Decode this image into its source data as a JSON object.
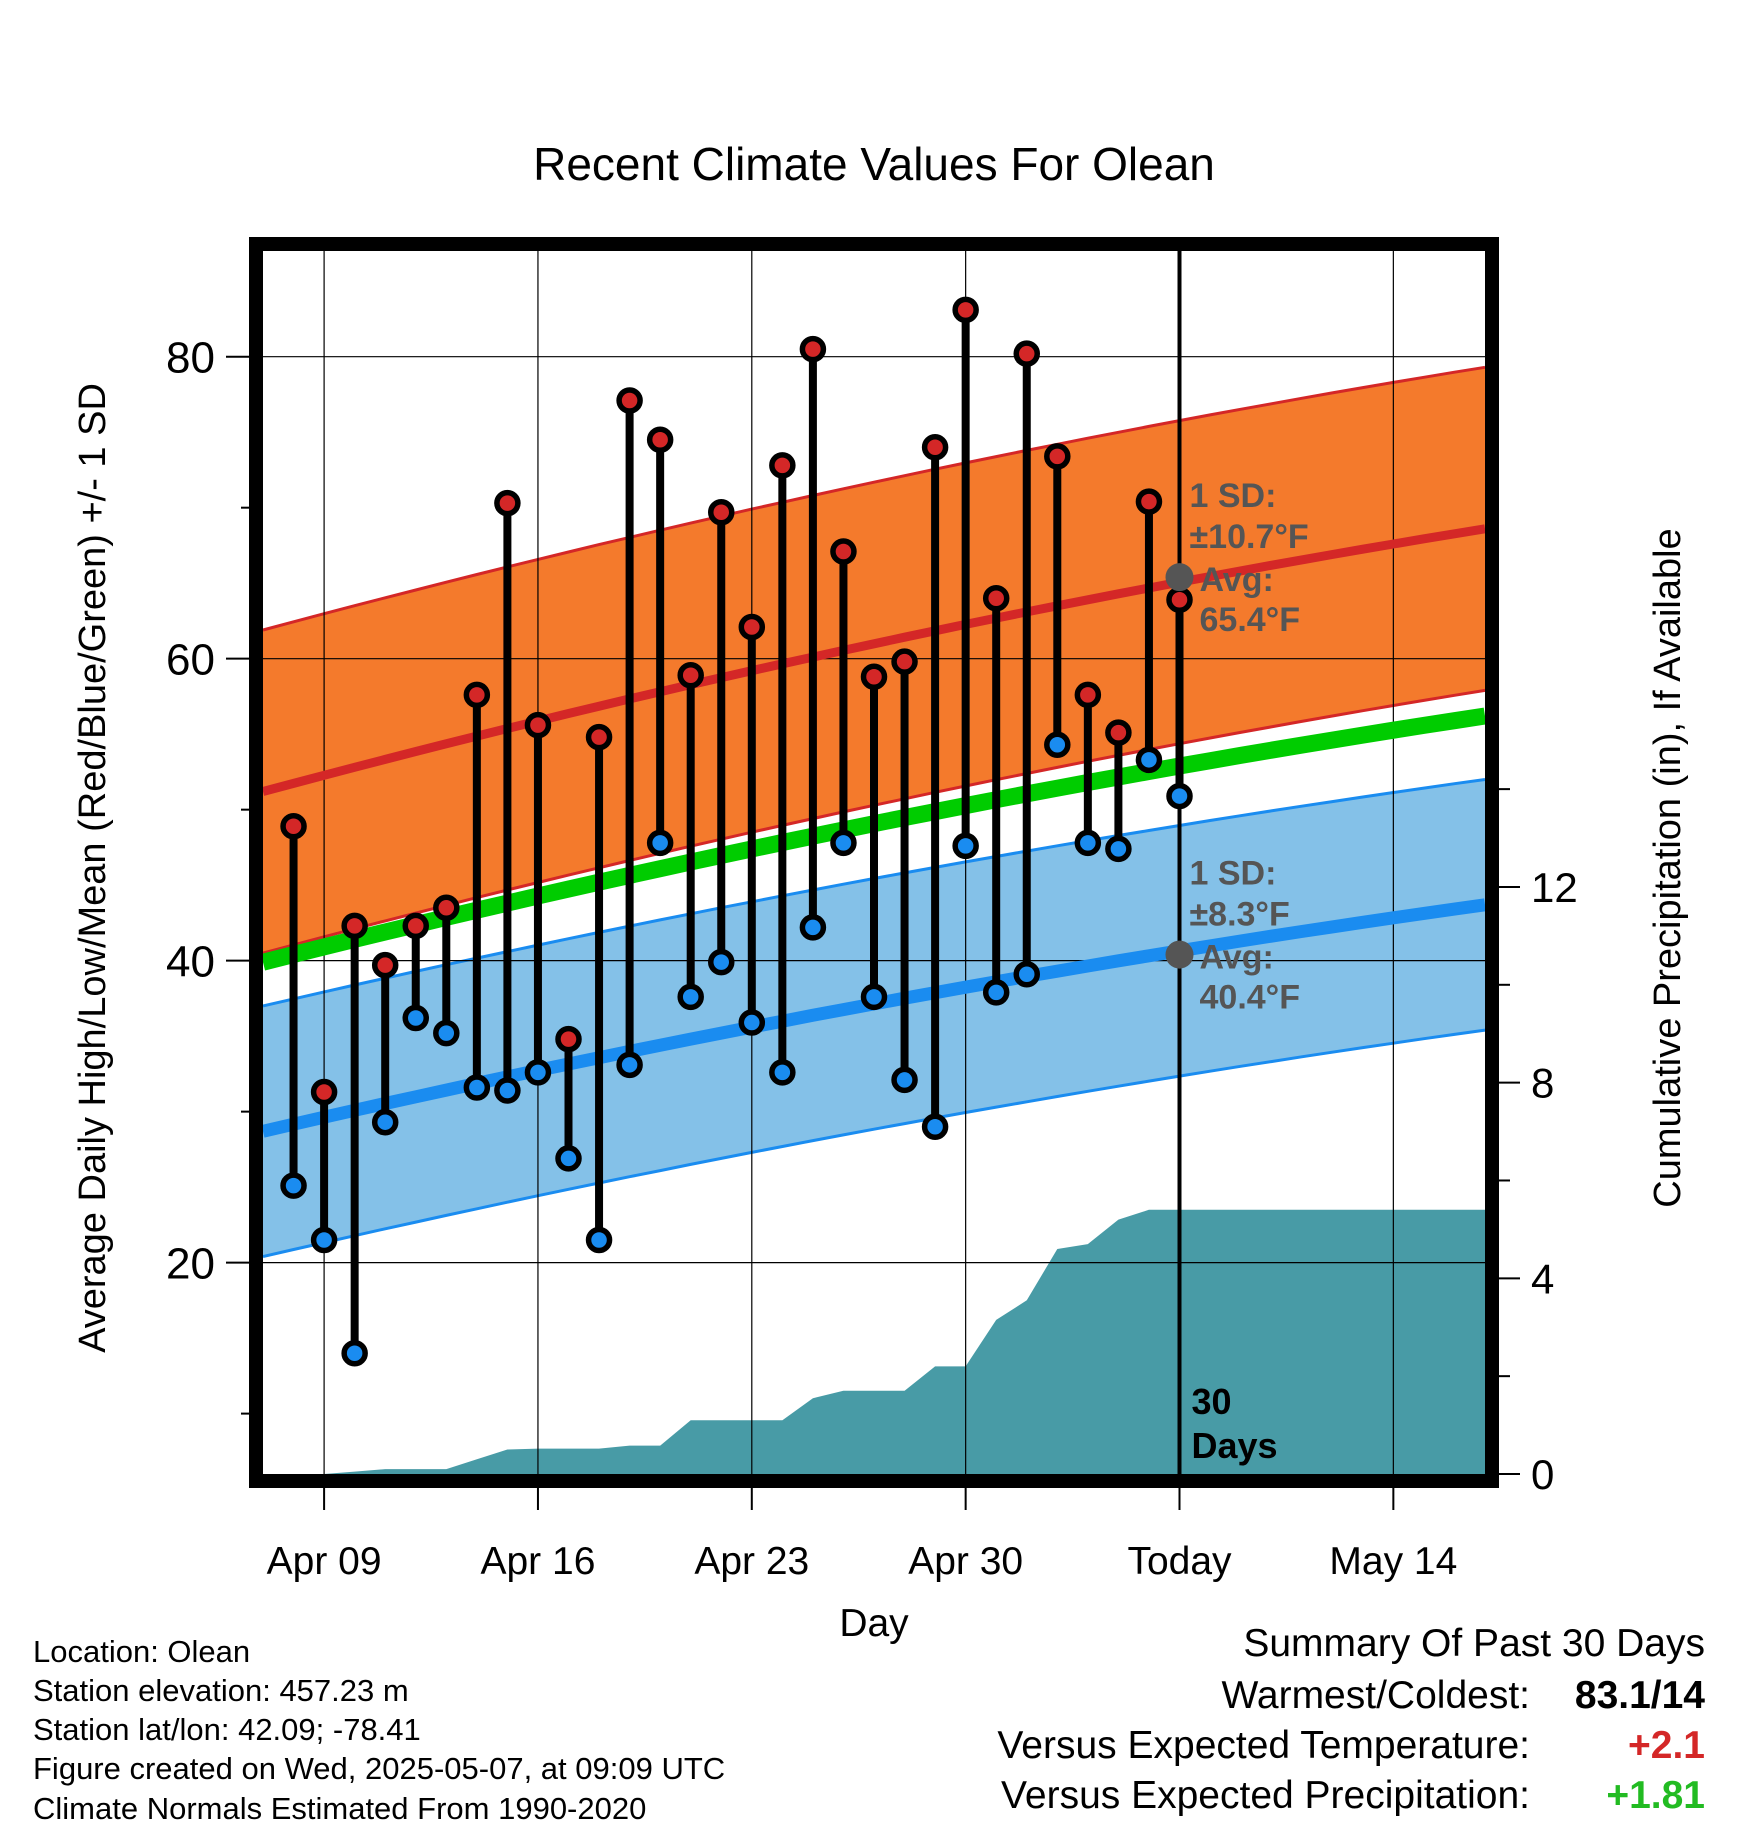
{
  "chart_data": {
    "type": "line",
    "title": "Recent Climate Values For Olean",
    "xlabel": "Day",
    "ylabel": "Average Daily High/Low/Mean (Red/Blue/Green) +/- 1 SD",
    "y2label": "Cumulative Precipitation (in), If Available",
    "x_tick_labels": [
      "Apr 09",
      "Apr 16",
      "Apr 23",
      "Apr 30",
      "Today",
      "May 14"
    ],
    "x_tick_dates": [
      "Apr 09",
      "Apr 16",
      "Apr 23",
      "Apr 30",
      "May 07",
      "May 14"
    ],
    "y_ticks": [
      20,
      40,
      60,
      80
    ],
    "y2_ticks": [
      0,
      4,
      8,
      12
    ],
    "ylim": [
      6,
      87
    ],
    "y2lim": [
      0,
      25
    ],
    "xlim": [
      "Apr 07",
      "May 17"
    ],
    "daily_high": {
      "name": "Daily High",
      "dates": [
        "Apr 08",
        "Apr 09",
        "Apr 10",
        "Apr 11",
        "Apr 12",
        "Apr 13",
        "Apr 14",
        "Apr 15",
        "Apr 16",
        "Apr 17",
        "Apr 18",
        "Apr 19",
        "Apr 20",
        "Apr 21",
        "Apr 22",
        "Apr 23",
        "Apr 24",
        "Apr 25",
        "Apr 26",
        "Apr 27",
        "Apr 28",
        "Apr 29",
        "Apr 30",
        "May 01",
        "May 02",
        "May 03",
        "May 04",
        "May 05",
        "May 06",
        "May 07"
      ],
      "values": [
        48.9,
        31.3,
        42.3,
        39.7,
        42.3,
        43.5,
        57.6,
        70.3,
        55.6,
        34.8,
        54.8,
        77.1,
        74.5,
        58.9,
        69.7,
        62.1,
        72.8,
        80.5,
        67.1,
        58.8,
        59.8,
        74.0,
        83.1,
        64.0,
        80.2,
        73.4,
        57.6,
        55.1,
        70.4,
        63.9
      ]
    },
    "daily_low": {
      "name": "Daily Low",
      "dates": [
        "Apr 08",
        "Apr 09",
        "Apr 10",
        "Apr 11",
        "Apr 12",
        "Apr 13",
        "Apr 14",
        "Apr 15",
        "Apr 16",
        "Apr 17",
        "Apr 18",
        "Apr 19",
        "Apr 20",
        "Apr 21",
        "Apr 22",
        "Apr 23",
        "Apr 24",
        "Apr 25",
        "Apr 26",
        "Apr 27",
        "Apr 28",
        "Apr 29",
        "Apr 30",
        "May 01",
        "May 02",
        "May 03",
        "May 04",
        "May 05",
        "May 06",
        "May 07"
      ],
      "values": [
        25.1,
        21.5,
        14.0,
        29.3,
        36.2,
        35.2,
        31.6,
        31.4,
        32.6,
        26.9,
        21.5,
        33.1,
        47.8,
        37.6,
        39.9,
        35.9,
        32.6,
        42.2,
        47.8,
        37.6,
        32.1,
        29.0,
        47.6,
        37.9,
        39.1,
        54.3,
        47.8,
        47.4,
        53.3,
        50.9
      ]
    },
    "normal_high": {
      "name": "Normal High",
      "x": [
        "Apr 07",
        "May 17"
      ],
      "values": [
        51.2,
        68.6
      ],
      "sd": 10.7
    },
    "normal_low": {
      "name": "Normal Low",
      "x": [
        "Apr 07",
        "May 17"
      ],
      "values": [
        28.7,
        43.7
      ],
      "sd": 8.3
    },
    "normal_mean": {
      "name": "Normal Mean",
      "x": [
        "Apr 07",
        "May 17"
      ],
      "values": [
        39.9,
        56.2
      ]
    },
    "cumulative_precip": {
      "name": "Cumulative Precipitation",
      "dates": [
        "Apr 09",
        "Apr 10",
        "Apr 11",
        "Apr 12",
        "Apr 13",
        "Apr 14",
        "Apr 15",
        "Apr 16",
        "Apr 17",
        "Apr 18",
        "Apr 19",
        "Apr 20",
        "Apr 21",
        "Apr 22",
        "Apr 23",
        "Apr 24",
        "Apr 25",
        "Apr 26",
        "Apr 27",
        "Apr 28",
        "Apr 29",
        "Apr 30",
        "May 01",
        "May 02",
        "May 03",
        "May 04",
        "May 05",
        "May 06",
        "May 07",
        "May 17"
      ],
      "values": [
        0.0,
        0.05,
        0.1,
        0.1,
        0.1,
        0.3,
        0.5,
        0.52,
        0.52,
        0.52,
        0.58,
        0.58,
        1.1,
        1.1,
        1.1,
        1.1,
        1.55,
        1.7,
        1.7,
        1.7,
        2.2,
        2.2,
        3.15,
        3.55,
        4.6,
        4.7,
        5.2,
        5.4,
        5.4,
        5.4
      ]
    },
    "today_marker": "May 07",
    "today_label": "30 Days",
    "high_annotation": {
      "sd_label": "1 SD:",
      "sd_value": "±10.7°F",
      "avg_label": "Avg:",
      "avg_value": "65.4°F",
      "avg": 65.4
    },
    "low_annotation": {
      "sd_label": "1 SD:",
      "sd_value": "±8.3°F",
      "avg_label": "Avg:",
      "avg_value": "40.4°F",
      "avg": 40.4
    },
    "grid": true
  },
  "info": {
    "location": "Location: Olean",
    "elevation": "Station elevation: 457.23 m",
    "latlon": "Station lat/lon: 42.09; -78.41",
    "created": "Figure created on Wed, 2025-05-07, at 09:09 UTC",
    "normals": "Climate Normals Estimated From 1990-2020"
  },
  "summary": {
    "title": "Summary Of Past 30 Days",
    "warmest_label": "Warmest/Coldest:",
    "warmest_value": "83.1/14",
    "temp_label": "Versus Expected Temperature:",
    "temp_value": "+2.1",
    "precip_label": "Versus Expected Precipitation:",
    "precip_value": "+1.81"
  },
  "colors": {
    "high_band": "#f47a2c",
    "high_line": "#d42727",
    "low_band": "#84c1e8",
    "low_line": "#1a8cf0",
    "mean_line": "#00cc00",
    "precip_fill": "#489ba6",
    "high_dot": "#d42727",
    "low_dot": "#1a8cf0",
    "annotation_text": "#555555",
    "temp_positive": "#d42727",
    "precip_positive": "#22bb22"
  }
}
